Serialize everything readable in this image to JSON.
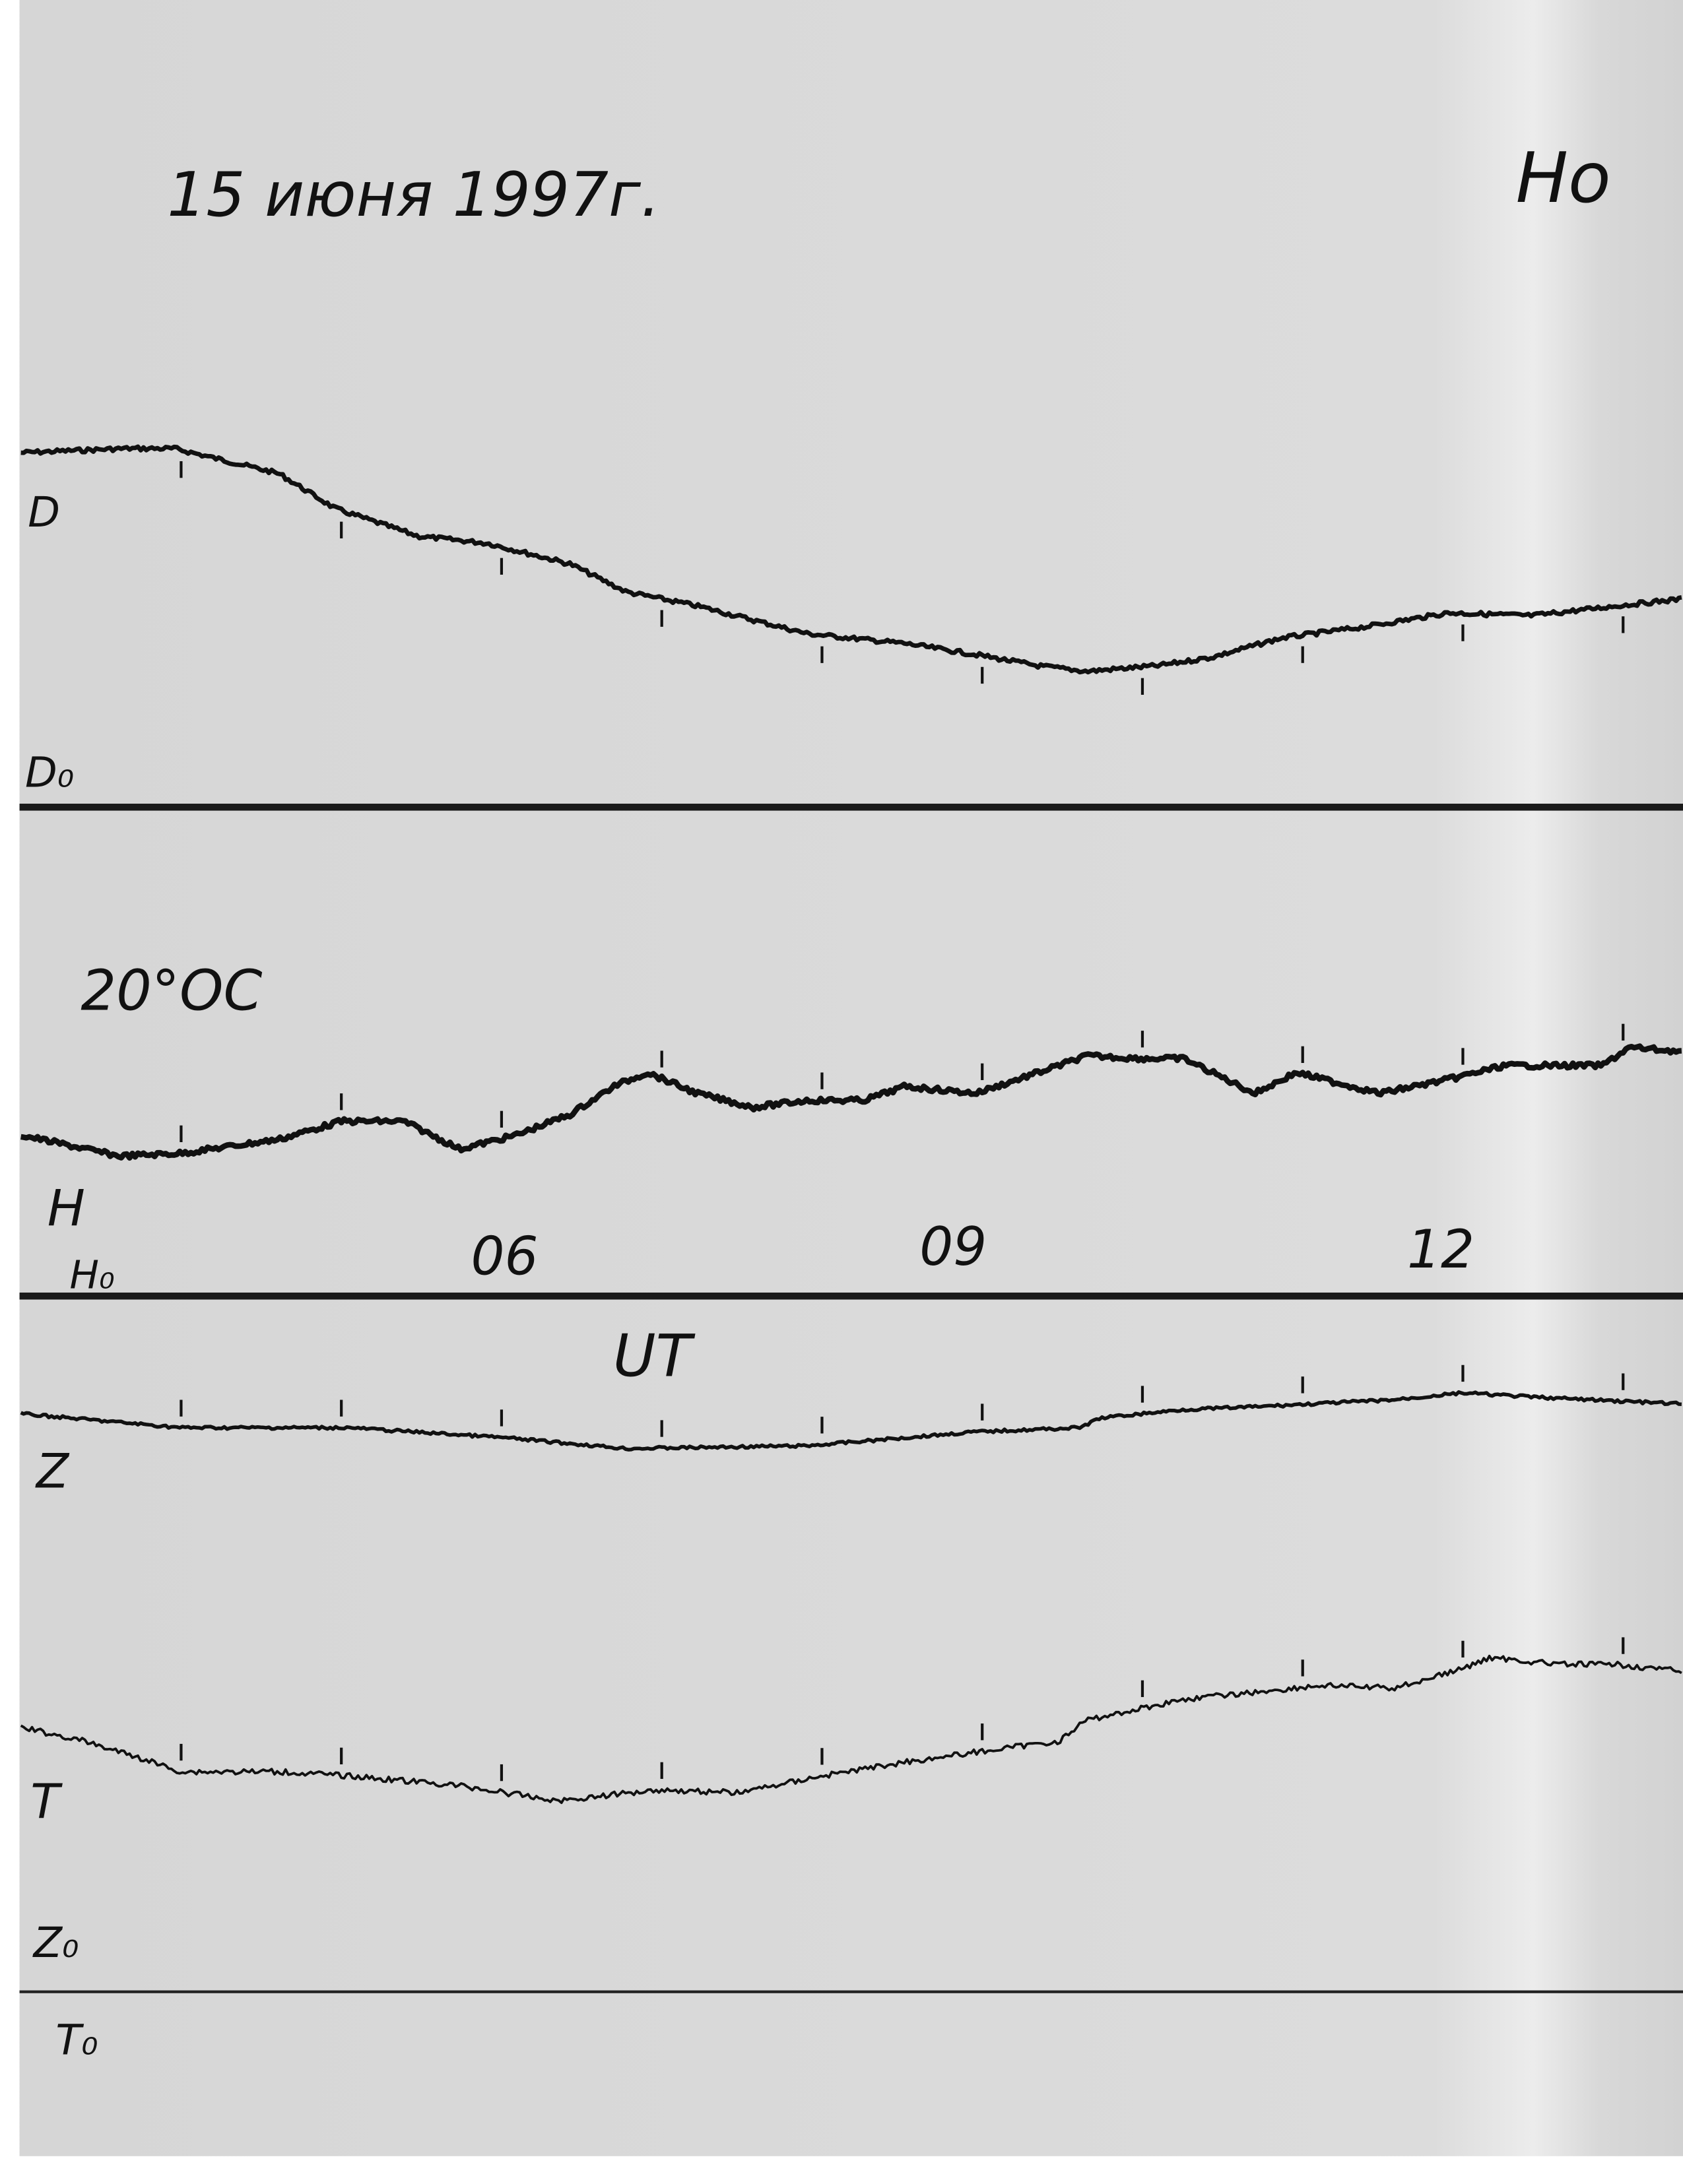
{
  "header": {
    "date": "15 июня 1997г.",
    "station_partial": "Но"
  },
  "labels": {
    "D": "D",
    "D0": "D₀",
    "temperature": "20°OC",
    "H": "H",
    "H0": "H₀",
    "Z": "Z",
    "T": "T",
    "Z0": "Z₀",
    "T0": "T₀",
    "time_axis": "UT"
  },
  "colors": {
    "paper": "#d9d9d9",
    "trace": "#111111",
    "baseline": "#1a1a1a"
  },
  "chart_data": {
    "type": "line",
    "title": "15 июня 1997г.",
    "xlabel": "UT",
    "x_ticks": [
      "06",
      "09",
      "12"
    ],
    "x_tick_values": [
      6,
      9,
      12
    ],
    "xlim": [
      3.0,
      13.4
    ],
    "hour_marks": [
      4,
      5,
      6,
      7,
      8,
      9,
      10,
      11,
      12,
      13
    ],
    "grid": false,
    "series": [
      {
        "name": "D",
        "baseline": "D₀",
        "points": [
          [
            3.0,
            175
          ],
          [
            3.65,
            178
          ],
          [
            3.96,
            178
          ],
          [
            4.61,
            160
          ],
          [
            4.96,
            135
          ],
          [
            5.48,
            115
          ],
          [
            5.91,
            110
          ],
          [
            6.43,
            95
          ],
          [
            6.78,
            75
          ],
          [
            7.22,
            65
          ],
          [
            7.91,
            45
          ],
          [
            8.52,
            38
          ],
          [
            8.96,
            30
          ],
          [
            9.35,
            22
          ],
          [
            9.65,
            18
          ],
          [
            10.09,
            22
          ],
          [
            10.43,
            28
          ],
          [
            10.87,
            42
          ],
          [
            11.39,
            50
          ],
          [
            11.91,
            60
          ],
          [
            12.43,
            58
          ],
          [
            12.96,
            65
          ],
          [
            13.37,
            70
          ]
        ]
      },
      {
        "name": "H",
        "baseline": "H₀",
        "points": [
          [
            3.0,
            85
          ],
          [
            3.61,
            70
          ],
          [
            4.0,
            72
          ],
          [
            4.61,
            82
          ],
          [
            5.0,
            95
          ],
          [
            5.39,
            95
          ],
          [
            5.74,
            75
          ],
          [
            6.09,
            85
          ],
          [
            6.43,
            100
          ],
          [
            6.7,
            120
          ],
          [
            6.91,
            130
          ],
          [
            7.22,
            115
          ],
          [
            7.57,
            105
          ],
          [
            7.91,
            110
          ],
          [
            8.26,
            110
          ],
          [
            8.52,
            120
          ],
          [
            8.96,
            115
          ],
          [
            9.48,
            135
          ],
          [
            9.65,
            142
          ],
          [
            10.0,
            140
          ],
          [
            10.26,
            140
          ],
          [
            10.7,
            115
          ],
          [
            10.96,
            130
          ],
          [
            11.48,
            115
          ],
          [
            11.91,
            125
          ],
          [
            12.26,
            135
          ],
          [
            12.87,
            135
          ],
          [
            13.04,
            148
          ],
          [
            13.37,
            145
          ]
        ]
      },
      {
        "name": "Z",
        "baseline": "Z₀",
        "points": [
          [
            3.0,
            85
          ],
          [
            4.0,
            75
          ],
          [
            5.04,
            75
          ],
          [
            6.0,
            68
          ],
          [
            6.78,
            60
          ],
          [
            7.91,
            62
          ],
          [
            8.96,
            72
          ],
          [
            9.61,
            75
          ],
          [
            9.74,
            82
          ],
          [
            10.26,
            88
          ],
          [
            10.7,
            90
          ],
          [
            11.57,
            95
          ],
          [
            12.0,
            100
          ],
          [
            12.43,
            97
          ],
          [
            13.37,
            92
          ]
        ]
      },
      {
        "name": "T",
        "baseline": "T₀",
        "points": [
          [
            3.0,
            110
          ],
          [
            3.39,
            100
          ],
          [
            3.74,
            88
          ],
          [
            4.0,
            78
          ],
          [
            4.61,
            78
          ],
          [
            5.04,
            75
          ],
          [
            5.74,
            68
          ],
          [
            6.35,
            57
          ],
          [
            6.96,
            65
          ],
          [
            7.48,
            63
          ],
          [
            8.0,
            75
          ],
          [
            8.52,
            85
          ],
          [
            8.96,
            92
          ],
          [
            9.48,
            100
          ],
          [
            9.65,
            115
          ],
          [
            10.26,
            130
          ],
          [
            10.7,
            135
          ],
          [
            11.13,
            140
          ],
          [
            11.57,
            138
          ],
          [
            12.0,
            152
          ],
          [
            12.17,
            160
          ],
          [
            12.61,
            155
          ],
          [
            12.96,
            155
          ],
          [
            13.37,
            150
          ]
        ]
      }
    ]
  }
}
